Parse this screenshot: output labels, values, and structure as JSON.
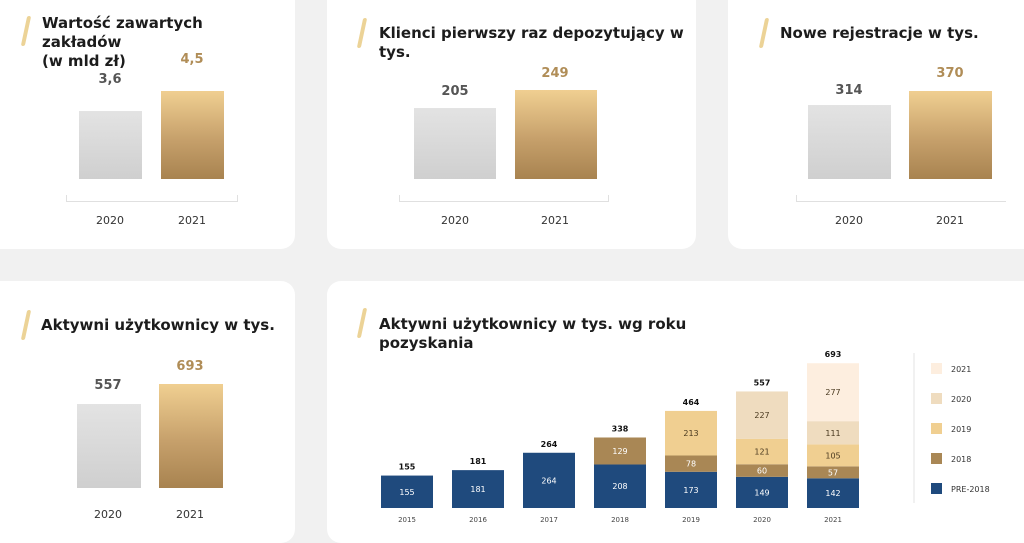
{
  "colors": {
    "gray": "#d6d6d6",
    "gold": "#c9a46c",
    "pre2018": "#1f4a7d",
    "y2018": "#a98755",
    "y2019": "#f0cf91",
    "y2020": "#efdcbf",
    "y2021": "#fdeedf"
  },
  "cards": [
    {
      "title": "Wartość zawartych zakładów\n(w mld zł)",
      "categories": [
        "2020",
        "2021"
      ],
      "labels": [
        "3,6",
        "4,5"
      ],
      "values": [
        3.6,
        4.5
      ]
    },
    {
      "title": "Klienci pierwszy raz depozytujący w tys.",
      "categories": [
        "2020",
        "2021"
      ],
      "labels": [
        "205",
        "249"
      ],
      "values": [
        205,
        249
      ]
    },
    {
      "title": "Nowe rejestracje w tys.",
      "categories": [
        "2020",
        "2021"
      ],
      "labels": [
        "314",
        "370"
      ],
      "values": [
        314,
        370
      ]
    },
    {
      "title": "Aktywni użytkownicy w tys.",
      "categories": [
        "2020",
        "2021"
      ],
      "labels": [
        "557",
        "693"
      ],
      "values": [
        557,
        693
      ]
    }
  ],
  "chart_data": [
    {
      "type": "bar",
      "title": "Wartość zawartych zakładów (w mld zł)",
      "categories": [
        "2020",
        "2021"
      ],
      "values": [
        3.6,
        4.5
      ]
    },
    {
      "type": "bar",
      "title": "Klienci pierwszy raz depozytujący w tys.",
      "categories": [
        "2020",
        "2021"
      ],
      "values": [
        205,
        249
      ]
    },
    {
      "type": "bar",
      "title": "Nowe rejestracje w tys.",
      "categories": [
        "2020",
        "2021"
      ],
      "values": [
        314,
        370
      ]
    },
    {
      "type": "bar",
      "title": "Aktywni użytkownicy w tys.",
      "categories": [
        "2020",
        "2021"
      ],
      "values": [
        557,
        693
      ]
    },
    {
      "type": "bar",
      "stacked": true,
      "title": "Aktywni użytkownicy w tys. wg roku pozyskania",
      "categories": [
        "2015",
        "2016",
        "2017",
        "2018",
        "2019",
        "2020",
        "2021"
      ],
      "totals": [
        155,
        181,
        264,
        338,
        464,
        557,
        693
      ],
      "legend_position": "right",
      "series": [
        {
          "name": "PRE-2018",
          "color": "#1f4a7d",
          "values": [
            155,
            181,
            264,
            208,
            173,
            149,
            142
          ]
        },
        {
          "name": "2018",
          "color": "#a98755",
          "values": [
            0,
            0,
            0,
            129,
            78,
            60,
            57
          ]
        },
        {
          "name": "2019",
          "color": "#f0cf91",
          "values": [
            0,
            0,
            0,
            0,
            213,
            121,
            105
          ]
        },
        {
          "name": "2020",
          "color": "#efdcbf",
          "values": [
            0,
            0,
            0,
            0,
            0,
            227,
            111
          ]
        },
        {
          "name": "2021",
          "color": "#fdeedf",
          "values": [
            0,
            0,
            0,
            0,
            0,
            0,
            277
          ]
        }
      ]
    }
  ],
  "stack_title": "Aktywni użytkownicy w tys. wg roku pozyskania"
}
